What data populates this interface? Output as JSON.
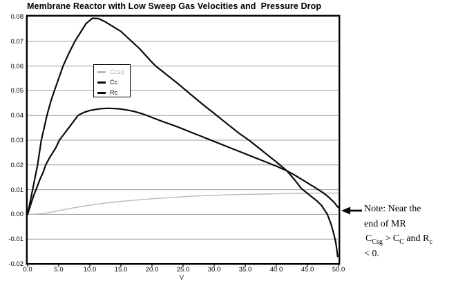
{
  "title": "Membrane Reactor with Low Sweep Gas Velocities and  Pressure Drop",
  "chart_data": {
    "type": "line",
    "title": "Membrane Reactor with Low Sweep Gas Velocities and  Pressure Drop",
    "xlabel": "V",
    "ylabel": "",
    "xlim": [
      0,
      50
    ],
    "ylim": [
      -0.02,
      0.08
    ],
    "grid": "horizontal",
    "legend_position": "upper-left-inside",
    "xticks": [
      "0.0",
      "5.0",
      "10.0",
      "15.0",
      "20.0",
      "25.0",
      "30.0",
      "35.0",
      "40.0",
      "45.0",
      "50.0"
    ],
    "xtick_values": [
      0,
      5,
      10,
      15,
      20,
      25,
      30,
      35,
      40,
      45,
      50
    ],
    "yticks": [
      "0.08",
      "0.07",
      "0.06",
      "0.05",
      "0.04",
      "0.03",
      "0.02",
      "0.01",
      "0.00",
      "-0.01",
      "-0.02"
    ],
    "ytick_values": [
      0.08,
      0.07,
      0.06,
      0.05,
      0.04,
      0.03,
      0.02,
      0.01,
      0.0,
      -0.01,
      -0.02
    ],
    "series": [
      {
        "name": "Ccsg",
        "color": "#b9b9b9",
        "width": 1.4,
        "points": [
          [
            0,
            0
          ],
          [
            1,
            0.0001
          ],
          [
            2,
            0.0003
          ],
          [
            3,
            0.0006
          ],
          [
            4,
            0.001
          ],
          [
            5,
            0.0015
          ],
          [
            6,
            0.002
          ],
          [
            8,
            0.0029
          ],
          [
            10,
            0.0037
          ],
          [
            12,
            0.0044
          ],
          [
            14,
            0.005
          ],
          [
            16,
            0.0055
          ],
          [
            18,
            0.0059
          ],
          [
            20,
            0.0063
          ],
          [
            23,
            0.0068
          ],
          [
            26,
            0.0073
          ],
          [
            29,
            0.0076
          ],
          [
            32,
            0.0079
          ],
          [
            35,
            0.0081
          ],
          [
            38,
            0.0082
          ],
          [
            41,
            0.0084
          ],
          [
            44,
            0.0085
          ],
          [
            47,
            0.0086
          ],
          [
            50,
            0.0086
          ]
        ]
      },
      {
        "name": "Cc",
        "color": "#0a0a0a",
        "width": 2.2,
        "points": [
          [
            0,
            0
          ],
          [
            0.5,
            0.004
          ],
          [
            1,
            0.0078
          ],
          [
            1.5,
            0.011
          ],
          [
            2,
            0.0143
          ],
          [
            2.5,
            0.017
          ],
          [
            2.9,
            0.02
          ],
          [
            3.5,
            0.0228
          ],
          [
            4,
            0.0248
          ],
          [
            4.5,
            0.0268
          ],
          [
            5.1,
            0.03
          ],
          [
            6,
            0.033
          ],
          [
            7,
            0.0363
          ],
          [
            8.1,
            0.04
          ],
          [
            9,
            0.0412
          ],
          [
            10,
            0.042
          ],
          [
            11,
            0.0425
          ],
          [
            12,
            0.0428
          ],
          [
            13,
            0.0429
          ],
          [
            14,
            0.0428
          ],
          [
            15,
            0.0426
          ],
          [
            16,
            0.0422
          ],
          [
            17,
            0.0417
          ],
          [
            18,
            0.041
          ],
          [
            19,
            0.0402
          ],
          [
            20,
            0.0392
          ],
          [
            22,
            0.0373
          ],
          [
            24,
            0.0355
          ],
          [
            26,
            0.0335
          ],
          [
            28,
            0.0315
          ],
          [
            30,
            0.0295
          ],
          [
            32,
            0.0275
          ],
          [
            34,
            0.0255
          ],
          [
            36,
            0.0235
          ],
          [
            38,
            0.0215
          ],
          [
            40,
            0.0195
          ],
          [
            41.7,
            0.0176
          ],
          [
            43,
            0.0158
          ],
          [
            44.5,
            0.0135
          ],
          [
            46,
            0.0112
          ],
          [
            47.5,
            0.0088
          ],
          [
            48.5,
            0.0068
          ],
          [
            49.3,
            0.0048
          ],
          [
            49.8,
            0.0032
          ],
          [
            50,
            0.0027
          ]
        ]
      },
      {
        "name": "Rc",
        "color": "#0a0a0a",
        "width": 2.2,
        "points": [
          [
            0,
            0
          ],
          [
            0.4,
            0.005
          ],
          [
            0.8,
            0.01
          ],
          [
            1.2,
            0.015
          ],
          [
            1.6,
            0.02
          ],
          [
            2.2,
            0.03
          ],
          [
            2.7,
            0.0355
          ],
          [
            3.1,
            0.04
          ],
          [
            3.7,
            0.0455
          ],
          [
            4.3,
            0.05
          ],
          [
            5,
            0.055
          ],
          [
            5.7,
            0.06
          ],
          [
            6.6,
            0.065
          ],
          [
            7.6,
            0.07
          ],
          [
            8.6,
            0.074
          ],
          [
            9.4,
            0.0772
          ],
          [
            10.4,
            0.0793
          ],
          [
            11.4,
            0.0792
          ],
          [
            12.4,
            0.078
          ],
          [
            13.5,
            0.0763
          ],
          [
            15,
            0.074
          ],
          [
            16.5,
            0.0705
          ],
          [
            18,
            0.067
          ],
          [
            20,
            0.0615
          ],
          [
            20.6,
            0.06
          ],
          [
            22,
            0.0572
          ],
          [
            24,
            0.0532
          ],
          [
            26,
            0.049
          ],
          [
            28,
            0.0448
          ],
          [
            28.9,
            0.043
          ],
          [
            30,
            0.0408
          ],
          [
            32,
            0.0368
          ],
          [
            34,
            0.0328
          ],
          [
            35.6,
            0.03
          ],
          [
            37,
            0.0272
          ],
          [
            38.5,
            0.0242
          ],
          [
            40,
            0.0212
          ],
          [
            41.7,
            0.0176
          ],
          [
            43,
            0.0138
          ],
          [
            44,
            0.0105
          ],
          [
            45,
            0.0085
          ],
          [
            45.6,
            0.0073
          ],
          [
            46.5,
            0.0055
          ],
          [
            47.3,
            0.0035
          ],
          [
            48.2,
            0
          ],
          [
            48.8,
            -0.004
          ],
          [
            49.3,
            -0.0085
          ],
          [
            49.6,
            -0.012
          ],
          [
            49.85,
            -0.017
          ]
        ]
      }
    ]
  },
  "annotation": {
    "line1": "Note: Near the",
    "line2": "end of MR",
    "line3": {
      "t1": "C",
      "s1": "Csg",
      "t2": " > C",
      "s2": "C",
      "t3": " and R",
      "s3": "c"
    },
    "line4": "< 0."
  },
  "colors": {
    "curve_black": "#0a0a0a",
    "curve_gray": "#b9b9b9",
    "grid": "#9c9c9c",
    "frame": "#000000",
    "background": "#ffffff"
  }
}
